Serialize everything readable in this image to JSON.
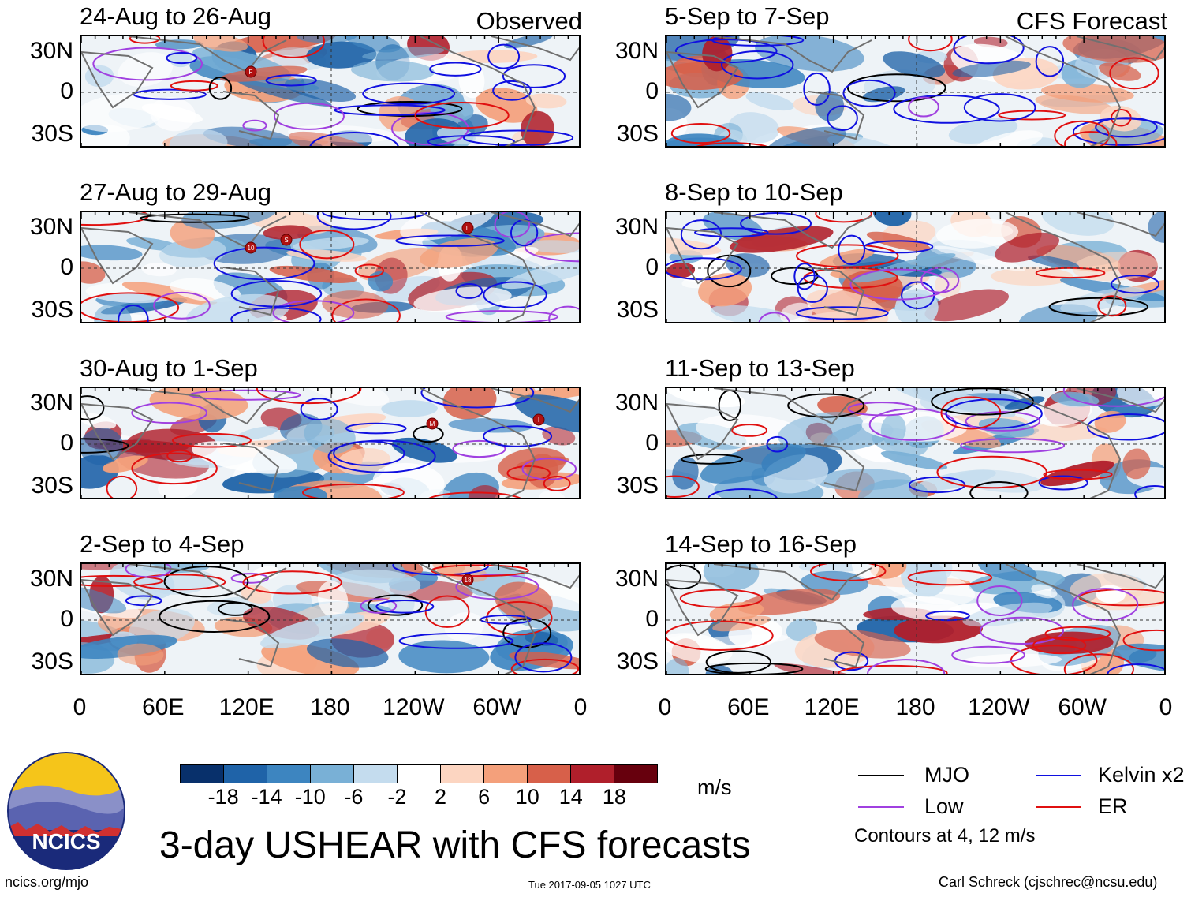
{
  "observed_label": "Observed",
  "forecast_label": "CFS Forecast",
  "lat_labels": [
    "30N",
    "0",
    "30S"
  ],
  "lon_labels": [
    "0",
    "60E",
    "120E",
    "180",
    "120W",
    "60W",
    "0"
  ],
  "panels_observed": [
    {
      "title": "24-Aug to 26-Aug",
      "storms": [
        {
          "mark": "F"
        }
      ]
    },
    {
      "title": "27-Aug to 29-Aug",
      "storms": [
        {
          "mark": "S"
        },
        {
          "mark": "L"
        },
        {
          "mark": "10"
        }
      ]
    },
    {
      "title": "30-Aug to 1-Sep",
      "storms": [
        {
          "mark": "M"
        },
        {
          "mark": "I"
        }
      ]
    },
    {
      "title": "2-Sep to 4-Sep",
      "storms": [
        {
          "mark": "18"
        }
      ]
    }
  ],
  "panels_forecast": [
    {
      "title": "5-Sep to 7-Sep"
    },
    {
      "title": "8-Sep to 10-Sep"
    },
    {
      "title": "11-Sep to 13-Sep"
    },
    {
      "title": "14-Sep to 16-Sep"
    }
  ],
  "colorbar": {
    "colors": [
      "#08306b",
      "#1f63a8",
      "#3d85c0",
      "#79b0d6",
      "#c4dcee",
      "#ffffff",
      "#fcd5c1",
      "#f4a07b",
      "#d7604a",
      "#b01f2b",
      "#67000d"
    ],
    "ticks": [
      "-18",
      "-14",
      "-10",
      "-6",
      "-2",
      "2",
      "6",
      "10",
      "14",
      "18"
    ],
    "units": "m/s"
  },
  "legend": [
    {
      "label": "MJO",
      "color": "#000000"
    },
    {
      "label": "Kelvin x2",
      "color": "#1010e0"
    },
    {
      "label": "Low",
      "color": "#a040e0"
    },
    {
      "label": "ER",
      "color": "#e01010"
    }
  ],
  "contour_note": "Contours at 4, 12 m/s",
  "main_title": "3-day USHEAR with CFS forecasts",
  "logo_text": "NCICS",
  "footer": {
    "left": "ncics.org/mjo",
    "center": "Tue 2017-09-05 1027 UTC",
    "right": "Carl Schreck (cjschrec@ncsu.edu)"
  }
}
